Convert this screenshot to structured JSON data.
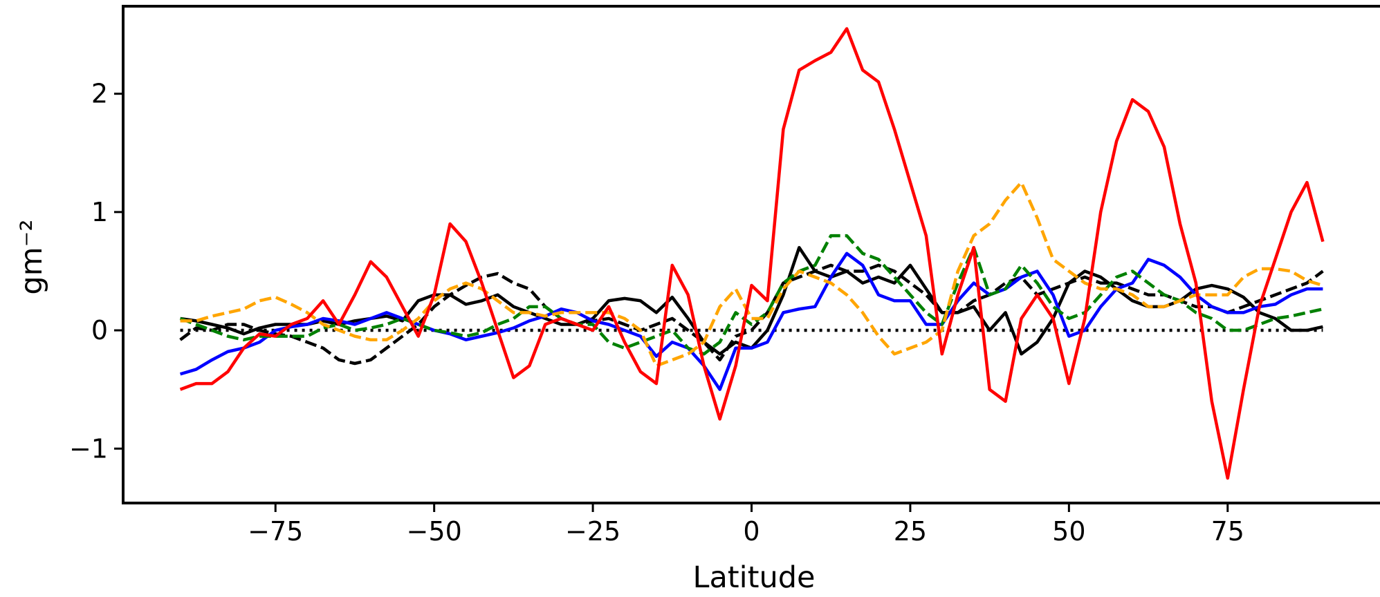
{
  "chart_data": {
    "type": "line",
    "xlabel": "Latitude",
    "ylabel": "gm⁻²",
    "xlim": [
      -99,
      99
    ],
    "ylim": [
      -1.46,
      2.74
    ],
    "xticks": [
      {
        "value": -75,
        "label": "−75"
      },
      {
        "value": -50,
        "label": "−50"
      },
      {
        "value": -25,
        "label": "−25"
      },
      0,
      25,
      50,
      75
    ],
    "yticks": [
      {
        "value": -1,
        "label": "−1"
      },
      0,
      1,
      2
    ],
    "hline": {
      "value": 0,
      "color": "#000000",
      "style": "dotted"
    },
    "x": [
      -90,
      -87.5,
      -85,
      -82.5,
      -80,
      -77.5,
      -75,
      -72.5,
      -70,
      -67.5,
      -65,
      -62.5,
      -60,
      -57.5,
      -55,
      -52.5,
      -50,
      -47.5,
      -45,
      -42.5,
      -40,
      -37.5,
      -35,
      -32.5,
      -30,
      -27.5,
      -25,
      -22.5,
      -20,
      -17.5,
      -15,
      -12.5,
      -10,
      -7.5,
      -5,
      -2.5,
      0,
      2.5,
      5,
      7.5,
      10,
      12.5,
      15,
      17.5,
      20,
      22.5,
      25,
      27.5,
      30,
      32.5,
      35,
      37.5,
      40,
      42.5,
      45,
      47.5,
      50,
      52.5,
      55,
      57.5,
      60,
      62.5,
      65,
      67.5,
      70,
      72.5,
      75,
      77.5,
      80,
      82.5,
      85,
      87.5,
      90
    ],
    "series": [
      {
        "color": "#000000",
        "style": "solid",
        "values": [
          0.1,
          0.08,
          0.05,
          0.02,
          -0.03,
          0.02,
          0.05,
          0.05,
          0.05,
          0.08,
          0.05,
          0.08,
          0.1,
          0.12,
          0.08,
          0.25,
          0.3,
          0.3,
          0.22,
          0.25,
          0.3,
          0.2,
          0.15,
          0.1,
          0.05,
          0.05,
          0.1,
          0.25,
          0.27,
          0.25,
          0.15,
          0.28,
          0.1,
          -0.1,
          -0.2,
          -0.1,
          -0.15,
          0.0,
          0.3,
          0.7,
          0.5,
          0.45,
          0.5,
          0.4,
          0.45,
          0.4,
          0.55,
          0.35,
          0.15,
          0.15,
          0.2,
          0.0,
          0.15,
          -0.2,
          -0.1,
          0.1,
          0.4,
          0.5,
          0.45,
          0.35,
          0.25,
          0.2,
          0.2,
          0.25,
          0.35,
          0.38,
          0.35,
          0.28,
          0.15,
          0.1,
          0.0,
          0.0,
          0.03
        ]
      },
      {
        "color": "#000000",
        "style": "dashed",
        "values": [
          -0.08,
          0.02,
          0.0,
          0.05,
          0.05,
          0.0,
          -0.03,
          -0.05,
          -0.1,
          -0.15,
          -0.25,
          -0.28,
          -0.25,
          -0.15,
          -0.05,
          0.05,
          0.2,
          0.3,
          0.38,
          0.45,
          0.48,
          0.4,
          0.35,
          0.2,
          0.1,
          0.05,
          0.08,
          0.1,
          0.05,
          0.0,
          0.05,
          0.1,
          0.0,
          -0.1,
          -0.25,
          -0.05,
          0.0,
          0.15,
          0.4,
          0.45,
          0.5,
          0.55,
          0.5,
          0.5,
          0.55,
          0.5,
          0.4,
          0.3,
          0.15,
          0.15,
          0.25,
          0.3,
          0.4,
          0.45,
          0.3,
          0.35,
          0.4,
          0.45,
          0.4,
          0.4,
          0.35,
          0.3,
          0.3,
          0.25,
          0.2,
          0.2,
          0.15,
          0.2,
          0.25,
          0.3,
          0.35,
          0.4,
          0.5
        ]
      },
      {
        "color": "#0000ff",
        "style": "solid",
        "values": [
          -0.37,
          -0.33,
          -0.25,
          -0.18,
          -0.15,
          -0.1,
          0.0,
          0.03,
          0.05,
          0.1,
          0.08,
          0.05,
          0.1,
          0.15,
          0.1,
          0.05,
          0.0,
          -0.03,
          -0.08,
          -0.05,
          -0.02,
          0.02,
          0.08,
          0.12,
          0.18,
          0.15,
          0.08,
          0.05,
          0.0,
          -0.05,
          -0.22,
          -0.1,
          -0.15,
          -0.3,
          -0.5,
          -0.15,
          -0.15,
          -0.1,
          0.15,
          0.18,
          0.2,
          0.45,
          0.65,
          0.55,
          0.3,
          0.25,
          0.25,
          0.05,
          0.05,
          0.25,
          0.4,
          0.3,
          0.35,
          0.45,
          0.5,
          0.3,
          -0.05,
          0.0,
          0.2,
          0.35,
          0.4,
          0.6,
          0.55,
          0.45,
          0.3,
          0.2,
          0.15,
          0.15,
          0.2,
          0.22,
          0.3,
          0.35,
          0.35
        ]
      },
      {
        "color": "#008000",
        "style": "dashed",
        "values": [
          0.1,
          0.05,
          0.0,
          -0.05,
          -0.08,
          -0.05,
          -0.05,
          -0.05,
          -0.05,
          0.02,
          0.05,
          0.0,
          0.02,
          0.05,
          0.1,
          0.05,
          0.0,
          -0.02,
          -0.05,
          -0.02,
          0.05,
          0.1,
          0.2,
          0.2,
          0.1,
          0.05,
          0.05,
          -0.1,
          -0.15,
          -0.1,
          -0.05,
          0.0,
          -0.15,
          -0.2,
          -0.1,
          0.15,
          0.05,
          0.15,
          0.4,
          0.5,
          0.55,
          0.8,
          0.8,
          0.65,
          0.6,
          0.45,
          0.3,
          0.15,
          0.05,
          0.4,
          0.7,
          0.3,
          0.35,
          0.55,
          0.4,
          0.2,
          0.1,
          0.15,
          0.3,
          0.45,
          0.5,
          0.4,
          0.3,
          0.25,
          0.15,
          0.1,
          0.0,
          0.0,
          0.05,
          0.1,
          0.12,
          0.15,
          0.18
        ]
      },
      {
        "color": "#ffa500",
        "style": "dashed",
        "values": [
          0.08,
          0.08,
          0.12,
          0.15,
          0.18,
          0.25,
          0.28,
          0.22,
          0.15,
          0.05,
          0.0,
          -0.05,
          -0.08,
          -0.08,
          0.0,
          0.1,
          0.25,
          0.35,
          0.4,
          0.35,
          0.25,
          0.15,
          0.15,
          0.12,
          0.15,
          0.15,
          0.15,
          0.15,
          0.1,
          0.0,
          -0.3,
          -0.25,
          -0.2,
          -0.1,
          0.2,
          0.35,
          0.1,
          0.1,
          0.35,
          0.5,
          0.45,
          0.4,
          0.3,
          0.15,
          -0.05,
          -0.2,
          -0.15,
          -0.1,
          0.0,
          0.5,
          0.8,
          0.9,
          1.1,
          1.25,
          0.95,
          0.6,
          0.5,
          0.4,
          0.35,
          0.35,
          0.3,
          0.2,
          0.2,
          0.25,
          0.3,
          0.3,
          0.3,
          0.45,
          0.52,
          0.52,
          0.5,
          0.42,
          0.38
        ]
      },
      {
        "color": "#ff0000",
        "style": "solid",
        "values": [
          -0.5,
          -0.45,
          -0.45,
          -0.35,
          -0.15,
          -0.03,
          -0.05,
          0.05,
          0.1,
          0.25,
          0.05,
          0.3,
          0.58,
          0.45,
          0.2,
          -0.05,
          0.3,
          0.9,
          0.75,
          0.4,
          0.0,
          -0.4,
          -0.3,
          0.05,
          0.1,
          0.05,
          0.0,
          0.2,
          -0.1,
          -0.35,
          -0.45,
          0.55,
          0.3,
          -0.3,
          -0.75,
          -0.3,
          0.38,
          0.25,
          1.7,
          2.2,
          2.28,
          2.35,
          2.55,
          2.2,
          2.1,
          1.7,
          1.25,
          0.8,
          -0.2,
          0.3,
          0.7,
          -0.5,
          -0.6,
          0.1,
          0.3,
          0.1,
          -0.45,
          0.1,
          1.0,
          1.6,
          1.95,
          1.85,
          1.55,
          0.9,
          0.4,
          -0.6,
          -1.25,
          -0.5,
          0.2,
          0.6,
          1.0,
          1.25,
          0.75
        ]
      }
    ]
  }
}
